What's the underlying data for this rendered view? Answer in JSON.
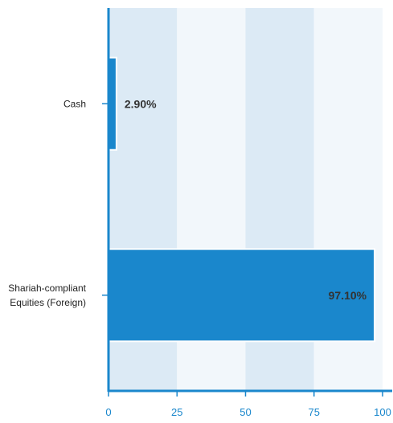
{
  "chart_data": {
    "type": "bar",
    "orientation": "horizontal",
    "categories": [
      [
        "Cash"
      ],
      [
        "Shariah-compliant",
        "Equities (Foreign)"
      ]
    ],
    "values": [
      2.9,
      97.1
    ],
    "data_labels": [
      "2.90%",
      "97.10%"
    ],
    "xlim": [
      0,
      100
    ],
    "xticks": [
      0,
      25,
      50,
      75,
      100
    ],
    "xtick_labels": [
      "0",
      "25",
      "50",
      "75",
      "100"
    ],
    "grid": "alternating vertical bands",
    "legend": "none"
  },
  "colors": {
    "bar": "#1a87cc",
    "band_dark": "#dceaf5",
    "band_light": "#f2f7fb",
    "axis": "#1a87cc",
    "tick_label": "#1a87cc",
    "category_label": "#222222",
    "data_label": "#333333"
  }
}
